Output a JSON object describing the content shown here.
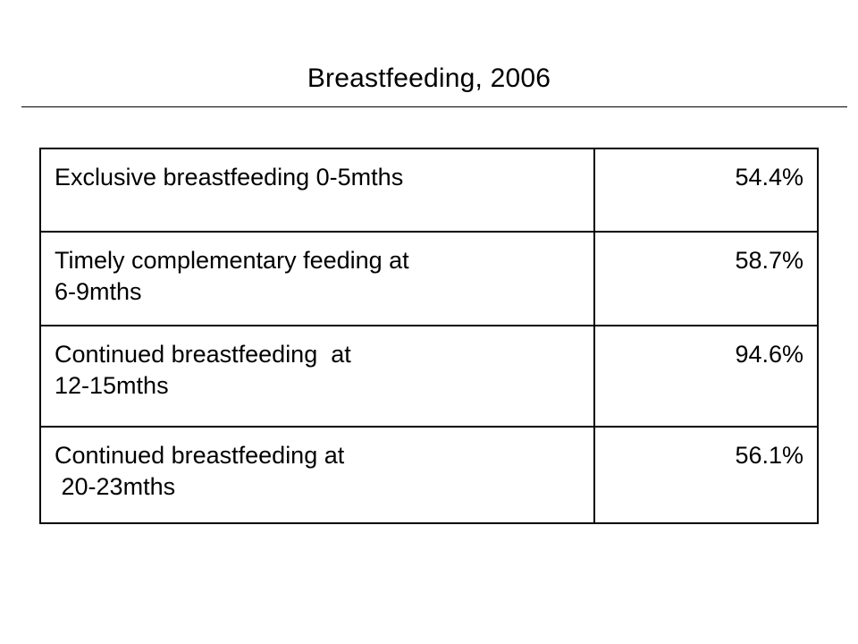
{
  "slide": {
    "title": "Breastfeeding, 2006"
  },
  "table": {
    "rows": [
      {
        "label": "Exclusive breastfeeding 0-5mths",
        "value": "54.4%"
      },
      {
        "label": "Timely complementary feeding at\n6-9mths",
        "value": "58.7%"
      },
      {
        "label": "Continued breastfeeding  at\n12-15mths",
        "value": "94.6%"
      },
      {
        "label": "Continued breastfeeding at\n 20-23mths",
        "value": "56.1%"
      }
    ]
  }
}
